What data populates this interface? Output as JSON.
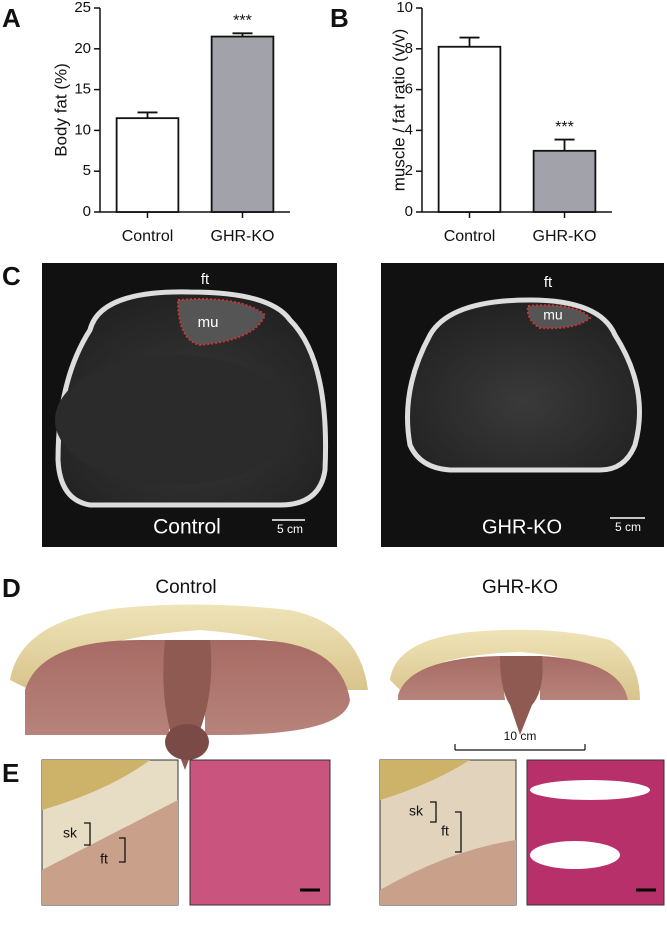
{
  "chart_data": [
    {
      "type": "bar",
      "panel": "A",
      "ylabel": "Body fat (%)",
      "categories": [
        "Control",
        "GHR-KO"
      ],
      "values": [
        11.5,
        21.5
      ],
      "errors": [
        0.7,
        0.4
      ],
      "colors": [
        "#ffffff",
        "#a2a2aa"
      ],
      "annotations": [
        null,
        "***"
      ],
      "ylim": [
        0,
        25
      ],
      "yticks": [
        0,
        5,
        10,
        15,
        20,
        25
      ]
    },
    {
      "type": "bar",
      "panel": "B",
      "ylabel": "muscle / fat ratio (v/v)",
      "categories": [
        "Control",
        "GHR-KO"
      ],
      "values": [
        8.1,
        3.0
      ],
      "errors": [
        0.45,
        0.55
      ],
      "colors": [
        "#ffffff",
        "#a2a2aa"
      ],
      "annotations": [
        null,
        "***"
      ],
      "ylim": [
        0,
        10
      ],
      "yticks": [
        0,
        2,
        4,
        6,
        8,
        10
      ]
    }
  ],
  "panel_c": {
    "label": "C",
    "left": {
      "fat": "ft",
      "muscle": "mu",
      "caption": "Control",
      "scale": "5 cm"
    },
    "right": {
      "fat": "ft",
      "muscle": "mu",
      "caption": "GHR-KO",
      "scale": "5 cm"
    }
  },
  "panel_d": {
    "label": "D",
    "left_caption": "Control",
    "right_caption": "GHR-KO",
    "scale": "10 cm"
  },
  "panel_e": {
    "label": "E",
    "left": {
      "skin": "sk",
      "fat": "ft"
    },
    "right": {
      "skin": "sk",
      "fat": "ft"
    }
  }
}
